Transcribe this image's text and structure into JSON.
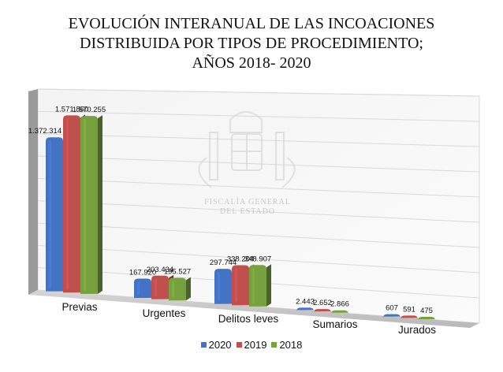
{
  "chart_data": {
    "type": "bar",
    "title": "EVOLUCIÓN INTERANUAL DE LAS INCOACIONES DISTRIBUIDA POR TIPOS DE PROCEDIMIENTO; AÑOS 2018- 2020",
    "title_lines": [
      "EVOLUCIÓN INTERANUAL DE LAS INCOACIONES",
      "DISTRIBUIDA POR TIPOS DE PROCEDIMIENTO;",
      "AÑOS 2018- 2020"
    ],
    "categories": [
      "Previas",
      "Urgentes",
      "Delitos leves",
      "Sumarios",
      "Jurados"
    ],
    "series": [
      {
        "name": "2020",
        "color": "#4472C4",
        "values": [
          1372314,
          167920,
          297744,
          2443,
          607
        ],
        "labels": [
          "1.372.314",
          "167.920",
          "297.744",
          "2.443",
          "607"
        ]
      },
      {
        "name": "2019",
        "color": "#C0504D",
        "values": [
          1571860,
          203434,
          338204,
          2652,
          591
        ],
        "labels": [
          "1.571.860",
          "203.434",
          "338.204",
          "2.652",
          "591"
        ]
      },
      {
        "name": "2018",
        "color": "#77A03E",
        "values": [
          1570255,
          195527,
          348907,
          2866,
          475
        ],
        "labels": [
          "1.570.255",
          "195.527",
          "348.907",
          "2.866",
          "475"
        ]
      }
    ],
    "watermark": [
      "FISCALÍA GENERAL",
      "DEL ESTADO"
    ],
    "xlabel": "",
    "ylabel": "",
    "ylim": [
      0,
      1800000
    ],
    "grid": true,
    "legend_position": "bottom"
  }
}
